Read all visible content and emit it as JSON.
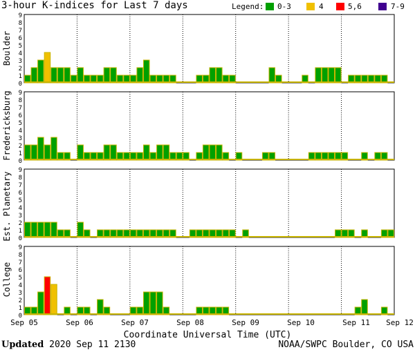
{
  "title": "3-hour K-indices for Last 7 days",
  "legend": {
    "label": "Legend:",
    "items": [
      {
        "label": "0-3",
        "color": "#00a000"
      },
      {
        "label": "4",
        "color": "#f0c000"
      },
      {
        "label": "5,6",
        "color": "#ff0000"
      },
      {
        "label": "7-9",
        "color": "#400090"
      }
    ]
  },
  "xlabel": "Coordinate Universal Time (UTC)",
  "footer": {
    "updated_label": "Updated",
    "updated_value": "2020 Sep 11 2130",
    "source": "NOAA/SWPC Boulder, CO USA"
  },
  "chart_data": {
    "type": "bar",
    "x_ticks": [
      "Sep 05",
      "Sep 06",
      "Sep 07",
      "Sep 08",
      "Sep 09",
      "Sep 10",
      "Sep 11",
      "Sep 12"
    ],
    "ylim": [
      0,
      9
    ],
    "y_ticks": [
      0,
      1,
      2,
      3,
      4,
      5,
      6,
      7,
      8,
      9
    ],
    "bar_outline_color": "#c8b400",
    "baseline_color": "#c8b400",
    "panels": [
      {
        "name": "Boulder",
        "values": [
          1,
          2,
          3,
          4,
          2,
          2,
          2,
          1,
          2,
          1,
          1,
          1,
          2,
          2,
          1,
          1,
          1,
          2,
          3,
          1,
          1,
          1,
          1,
          0,
          0,
          0,
          1,
          1,
          2,
          2,
          1,
          1,
          0,
          0,
          0,
          0,
          0,
          2,
          1,
          0,
          0,
          0,
          1,
          0,
          2,
          2,
          2,
          2,
          0,
          1,
          1,
          1,
          1,
          1,
          1,
          0
        ]
      },
      {
        "name": "Fredericksburg",
        "values": [
          2,
          2,
          3,
          2,
          3,
          1,
          1,
          0,
          2,
          1,
          1,
          1,
          2,
          2,
          1,
          1,
          1,
          1,
          2,
          1,
          2,
          2,
          1,
          1,
          1,
          0,
          1,
          2,
          2,
          2,
          1,
          0,
          1,
          0,
          0,
          0,
          1,
          1,
          0,
          0,
          0,
          0,
          0,
          1,
          1,
          1,
          1,
          1,
          1,
          0,
          0,
          1,
          0,
          1,
          1,
          0
        ]
      },
      {
        "name": "Est. Planetary",
        "values": [
          2,
          2,
          2,
          2,
          2,
          1,
          1,
          0,
          2,
          1,
          0,
          1,
          1,
          1,
          1,
          1,
          1,
          1,
          1,
          1,
          1,
          1,
          1,
          0,
          0,
          1,
          1,
          1,
          1,
          1,
          1,
          1,
          0,
          1,
          0,
          0,
          0,
          0,
          0,
          0,
          0,
          0,
          0,
          0,
          0,
          0,
          0,
          1,
          1,
          1,
          0,
          1,
          0,
          0,
          1,
          1
        ]
      },
      {
        "name": "College",
        "values": [
          1,
          1,
          3,
          5,
          4,
          0,
          1,
          0,
          1,
          1,
          0,
          2,
          1,
          0,
          0,
          0,
          1,
          1,
          3,
          3,
          3,
          1,
          0,
          0,
          0,
          0,
          1,
          1,
          1,
          1,
          1,
          0,
          0,
          0,
          0,
          0,
          0,
          0,
          0,
          0,
          0,
          0,
          0,
          0,
          0,
          0,
          0,
          0,
          0,
          0,
          1,
          2,
          0,
          0,
          1,
          0
        ]
      }
    ]
  }
}
